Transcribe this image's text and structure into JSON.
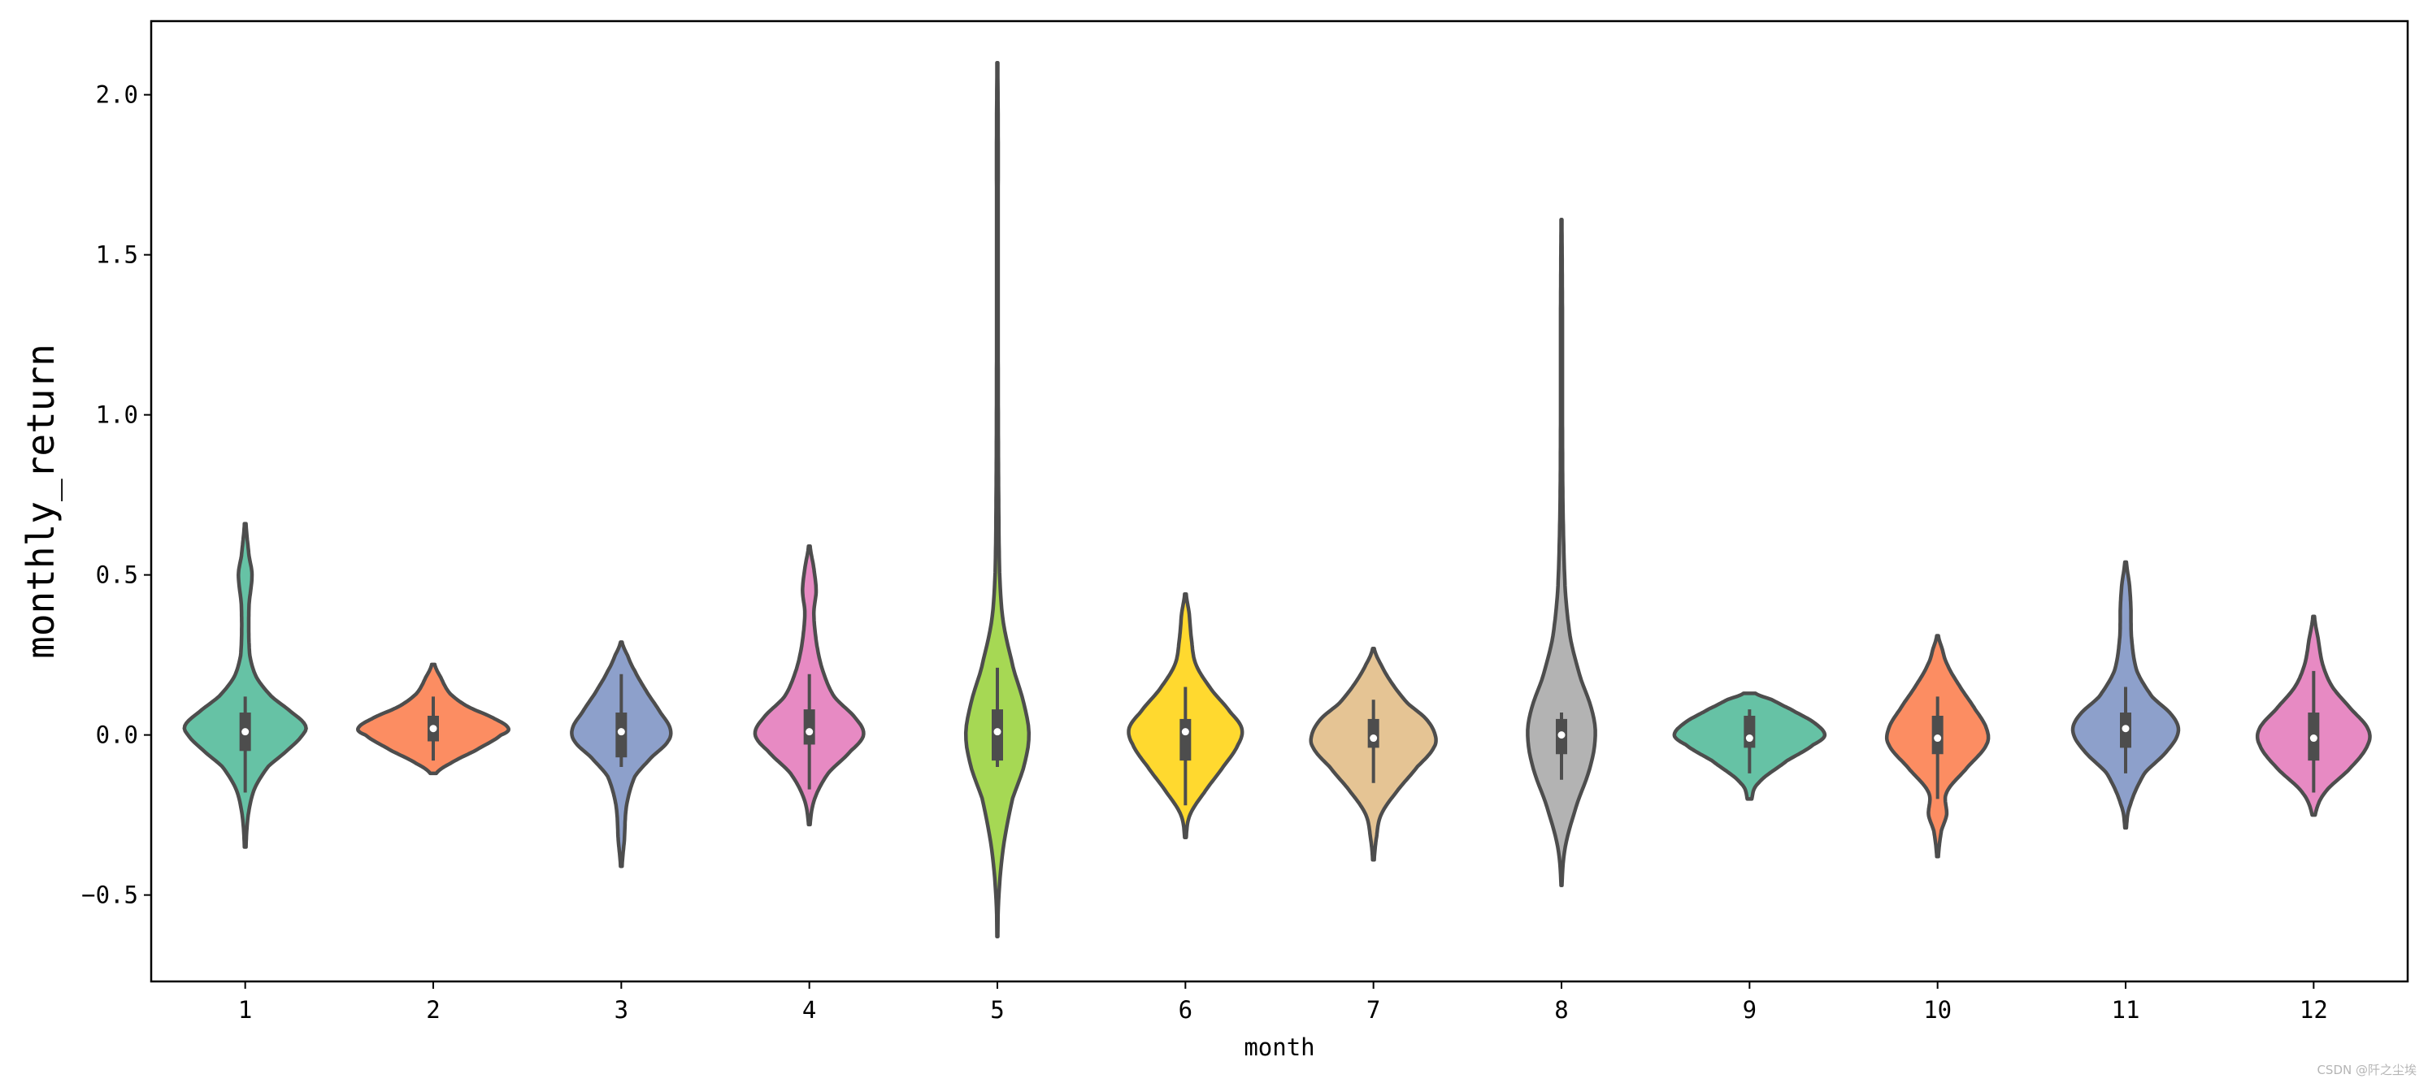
{
  "chart_data": {
    "type": "violin",
    "title": "",
    "xlabel": "month",
    "ylabel": "monthly_return",
    "categories": [
      "1",
      "2",
      "3",
      "4",
      "5",
      "6",
      "7",
      "8",
      "9",
      "10",
      "11",
      "12"
    ],
    "ylim": [
      -0.77,
      2.23
    ],
    "yticks": [
      -0.5,
      0.0,
      0.5,
      1.0,
      1.5,
      2.0
    ],
    "ytick_labels": [
      "−0.5",
      "0.0",
      "0.5",
      "1.0",
      "1.5",
      "2.0"
    ],
    "grid": false,
    "legend": "none",
    "palette": [
      "#66c2a5",
      "#fc8d62",
      "#8da0cb",
      "#e78ac3",
      "#a6d854",
      "#ffd92f",
      "#e5c494",
      "#b3b3b3",
      "#66c2a5",
      "#fc8d62",
      "#8da0cb",
      "#e78ac3"
    ],
    "line_color": "#4d4d4d",
    "violins": [
      {
        "category": "1",
        "min": -0.35,
        "max": 0.66,
        "q1": -0.05,
        "median": 0.01,
        "q3": 0.07,
        "whisker_low": -0.18,
        "whisker_high": 0.12,
        "density": [
          [
            -0.35,
            0.01
          ],
          [
            -0.25,
            0.04
          ],
          [
            -0.17,
            0.12
          ],
          [
            -0.1,
            0.3
          ],
          [
            -0.05,
            0.55
          ],
          [
            0.0,
            0.76
          ],
          [
            0.03,
            0.8
          ],
          [
            0.07,
            0.62
          ],
          [
            0.12,
            0.35
          ],
          [
            0.18,
            0.15
          ],
          [
            0.25,
            0.06
          ],
          [
            0.4,
            0.05
          ],
          [
            0.5,
            0.09
          ],
          [
            0.56,
            0.05
          ],
          [
            0.66,
            0.01
          ]
        ]
      },
      {
        "category": "2",
        "min": -0.12,
        "max": 0.22,
        "q1": -0.02,
        "median": 0.02,
        "q3": 0.06,
        "whisker_low": -0.08,
        "whisker_high": 0.12,
        "density": [
          [
            -0.12,
            0.04
          ],
          [
            -0.09,
            0.22
          ],
          [
            -0.05,
            0.55
          ],
          [
            0.0,
            0.9
          ],
          [
            0.02,
            1.0
          ],
          [
            0.05,
            0.82
          ],
          [
            0.09,
            0.45
          ],
          [
            0.13,
            0.22
          ],
          [
            0.18,
            0.1
          ],
          [
            0.22,
            0.02
          ]
        ]
      },
      {
        "category": "3",
        "min": -0.41,
        "max": 0.29,
        "q1": -0.07,
        "median": 0.01,
        "q3": 0.07,
        "whisker_low": -0.1,
        "whisker_high": 0.19,
        "density": [
          [
            -0.41,
            0.01
          ],
          [
            -0.33,
            0.04
          ],
          [
            -0.22,
            0.07
          ],
          [
            -0.13,
            0.18
          ],
          [
            -0.07,
            0.4
          ],
          [
            -0.02,
            0.62
          ],
          [
            0.02,
            0.65
          ],
          [
            0.07,
            0.52
          ],
          [
            0.13,
            0.35
          ],
          [
            0.2,
            0.18
          ],
          [
            0.25,
            0.08
          ],
          [
            0.29,
            0.01
          ]
        ]
      },
      {
        "category": "4",
        "min": -0.28,
        "max": 0.59,
        "q1": -0.03,
        "median": 0.01,
        "q3": 0.08,
        "whisker_low": -0.17,
        "whisker_high": 0.19,
        "density": [
          [
            -0.28,
            0.01
          ],
          [
            -0.2,
            0.07
          ],
          [
            -0.12,
            0.25
          ],
          [
            -0.05,
            0.55
          ],
          [
            0.0,
            0.72
          ],
          [
            0.05,
            0.62
          ],
          [
            0.12,
            0.33
          ],
          [
            0.2,
            0.18
          ],
          [
            0.28,
            0.1
          ],
          [
            0.38,
            0.06
          ],
          [
            0.45,
            0.09
          ],
          [
            0.52,
            0.06
          ],
          [
            0.59,
            0.01
          ]
        ]
      },
      {
        "category": "5",
        "min": -0.63,
        "max": 2.1,
        "q1": -0.08,
        "median": 0.01,
        "q3": 0.08,
        "whisker_low": -0.1,
        "whisker_high": 0.21,
        "density": [
          [
            -0.63,
            0.005
          ],
          [
            -0.5,
            0.02
          ],
          [
            -0.35,
            0.08
          ],
          [
            -0.2,
            0.2
          ],
          [
            -0.1,
            0.35
          ],
          [
            0.0,
            0.42
          ],
          [
            0.1,
            0.35
          ],
          [
            0.2,
            0.22
          ],
          [
            0.35,
            0.08
          ],
          [
            0.5,
            0.03
          ],
          [
            0.8,
            0.015
          ],
          [
            1.2,
            0.01
          ],
          [
            1.6,
            0.01
          ],
          [
            1.9,
            0.01
          ],
          [
            2.1,
            0.005
          ]
        ]
      },
      {
        "category": "6",
        "min": -0.32,
        "max": 0.44,
        "q1": -0.08,
        "median": 0.01,
        "q3": 0.05,
        "whisker_low": -0.22,
        "whisker_high": 0.15,
        "density": [
          [
            -0.32,
            0.01
          ],
          [
            -0.25,
            0.06
          ],
          [
            -0.18,
            0.25
          ],
          [
            -0.1,
            0.5
          ],
          [
            -0.03,
            0.7
          ],
          [
            0.02,
            0.75
          ],
          [
            0.07,
            0.6
          ],
          [
            0.14,
            0.35
          ],
          [
            0.22,
            0.14
          ],
          [
            0.3,
            0.08
          ],
          [
            0.38,
            0.05
          ],
          [
            0.44,
            0.01
          ]
        ]
      },
      {
        "category": "7",
        "min": -0.39,
        "max": 0.27,
        "q1": -0.04,
        "median": -0.01,
        "q3": 0.05,
        "whisker_low": -0.15,
        "whisker_high": 0.11,
        "density": [
          [
            -0.39,
            0.01
          ],
          [
            -0.32,
            0.04
          ],
          [
            -0.25,
            0.1
          ],
          [
            -0.18,
            0.3
          ],
          [
            -0.1,
            0.58
          ],
          [
            -0.04,
            0.8
          ],
          [
            0.0,
            0.82
          ],
          [
            0.05,
            0.7
          ],
          [
            0.1,
            0.45
          ],
          [
            0.16,
            0.25
          ],
          [
            0.22,
            0.1
          ],
          [
            0.27,
            0.01
          ]
        ]
      },
      {
        "category": "8",
        "min": -0.47,
        "max": 1.61,
        "q1": -0.06,
        "median": 0.0,
        "q3": 0.05,
        "whisker_low": -0.14,
        "whisker_high": 0.07,
        "density": [
          [
            -0.47,
            0.005
          ],
          [
            -0.35,
            0.05
          ],
          [
            -0.22,
            0.2
          ],
          [
            -0.1,
            0.38
          ],
          [
            0.0,
            0.45
          ],
          [
            0.08,
            0.4
          ],
          [
            0.18,
            0.25
          ],
          [
            0.3,
            0.12
          ],
          [
            0.45,
            0.05
          ],
          [
            0.7,
            0.02
          ],
          [
            1.0,
            0.012
          ],
          [
            1.3,
            0.012
          ],
          [
            1.5,
            0.008
          ],
          [
            1.61,
            0.005
          ]
        ]
      },
      {
        "category": "9",
        "min": -0.2,
        "max": 0.13,
        "q1": -0.04,
        "median": -0.01,
        "q3": 0.06,
        "whisker_low": -0.12,
        "whisker_high": 0.08,
        "density": [
          [
            -0.2,
            0.03
          ],
          [
            -0.15,
            0.12
          ],
          [
            -0.08,
            0.5
          ],
          [
            -0.03,
            0.85
          ],
          [
            0.0,
            1.0
          ],
          [
            0.04,
            0.85
          ],
          [
            0.08,
            0.55
          ],
          [
            0.11,
            0.3
          ],
          [
            0.13,
            0.08
          ]
        ]
      },
      {
        "category": "10",
        "min": -0.38,
        "max": 0.31,
        "q1": -0.06,
        "median": -0.01,
        "q3": 0.06,
        "whisker_low": -0.2,
        "whisker_high": 0.12,
        "density": [
          [
            -0.38,
            0.01
          ],
          [
            -0.3,
            0.05
          ],
          [
            -0.25,
            0.12
          ],
          [
            -0.18,
            0.12
          ],
          [
            -0.1,
            0.4
          ],
          [
            -0.03,
            0.65
          ],
          [
            0.02,
            0.65
          ],
          [
            0.08,
            0.5
          ],
          [
            0.15,
            0.3
          ],
          [
            0.22,
            0.13
          ],
          [
            0.27,
            0.06
          ],
          [
            0.31,
            0.01
          ]
        ]
      },
      {
        "category": "11",
        "min": -0.29,
        "max": 0.54,
        "q1": -0.04,
        "median": 0.02,
        "q3": 0.07,
        "whisker_low": -0.12,
        "whisker_high": 0.15,
        "density": [
          [
            -0.29,
            0.01
          ],
          [
            -0.22,
            0.06
          ],
          [
            -0.12,
            0.25
          ],
          [
            -0.05,
            0.55
          ],
          [
            0.01,
            0.7
          ],
          [
            0.06,
            0.62
          ],
          [
            0.12,
            0.35
          ],
          [
            0.2,
            0.15
          ],
          [
            0.3,
            0.08
          ],
          [
            0.4,
            0.07
          ],
          [
            0.47,
            0.05
          ],
          [
            0.54,
            0.01
          ]
        ]
      },
      {
        "category": "12",
        "min": -0.25,
        "max": 0.37,
        "q1": -0.08,
        "median": -0.01,
        "q3": 0.07,
        "whisker_low": -0.18,
        "whisker_high": 0.2,
        "density": [
          [
            -0.25,
            0.02
          ],
          [
            -0.18,
            0.15
          ],
          [
            -0.1,
            0.5
          ],
          [
            -0.03,
            0.72
          ],
          [
            0.02,
            0.72
          ],
          [
            0.08,
            0.5
          ],
          [
            0.15,
            0.25
          ],
          [
            0.22,
            0.12
          ],
          [
            0.3,
            0.06
          ],
          [
            0.37,
            0.01
          ]
        ]
      }
    ]
  },
  "watermark": "CSDN @阡之尘埃"
}
